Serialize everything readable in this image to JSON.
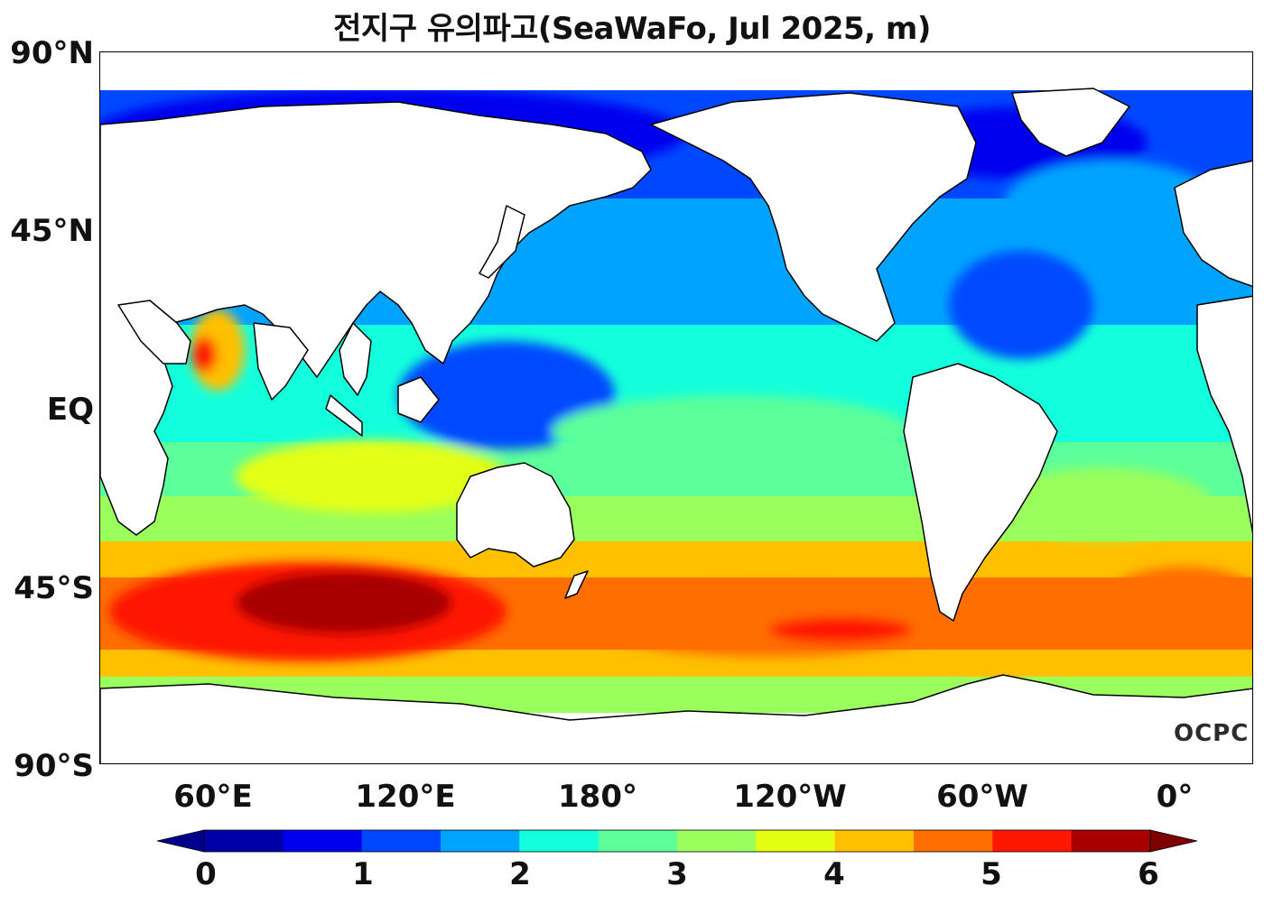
{
  "title": "전지구 유의파고(SeaWaFo, Jul 2025, m)",
  "logo": "OCPC",
  "y_axis": {
    "ticks": [
      "90°N",
      "45°N",
      "EQ",
      "45°S",
      "90°S"
    ],
    "lat_range": [
      -90,
      90
    ]
  },
  "x_axis": {
    "ticks": [
      "60°E",
      "120°E",
      "180°",
      "120°W",
      "60°W",
      "0°"
    ],
    "lon_range": [
      25,
      385
    ]
  },
  "colorbar": {
    "ticks": [
      "0",
      "1",
      "2",
      "3",
      "4",
      "5",
      "6"
    ],
    "range": [
      0,
      6
    ],
    "step": 0.5,
    "extend": "both",
    "under_color": "#00008b",
    "over_color": "#7f0000",
    "colors": [
      "#0000a8",
      "#0000ee",
      "#0048ff",
      "#00a4ff",
      "#13ffdc",
      "#5cff9a",
      "#9aff5c",
      "#e4ff12",
      "#ffc000",
      "#ff6e00",
      "#ff1800",
      "#a80000"
    ]
  },
  "map": {
    "projection": "equirectangular",
    "variable": "significant wave height",
    "units": "m",
    "land_color": "#ffffff",
    "coastline_color": "#000000",
    "data_coverage_lat": [
      -80,
      78
    ]
  }
}
